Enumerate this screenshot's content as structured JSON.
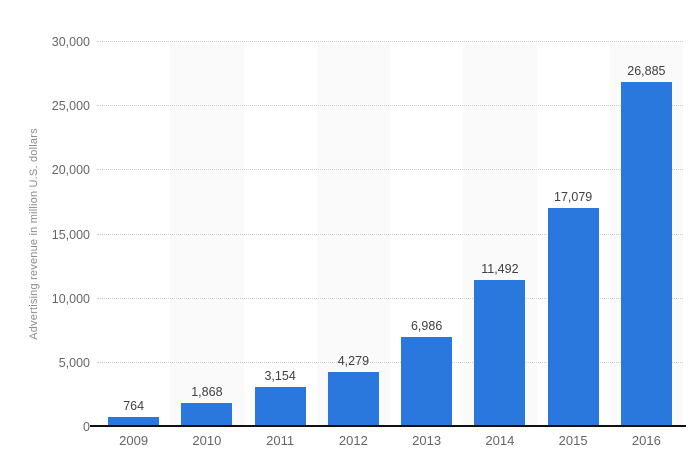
{
  "chart_data": {
    "type": "bar",
    "title": "",
    "categories": [
      "2009",
      "2010",
      "2011",
      "2012",
      "2013",
      "2014",
      "2015",
      "2016"
    ],
    "values": [
      764,
      1868,
      3154,
      4279,
      6986,
      11492,
      17079,
      26885
    ],
    "value_labels": [
      "764",
      "1,868",
      "3,154",
      "4,279",
      "6,986",
      "11,492",
      "17,079",
      "26,885"
    ],
    "xlabel": "",
    "ylabel": "Advertising revenue in million U.S. dollars",
    "ylim": [
      0,
      30000
    ],
    "ytick_interval": 5000,
    "yticks": [
      0,
      5000,
      10000,
      15000,
      20000,
      25000,
      30000
    ],
    "ytick_labels": [
      "0",
      "5,000",
      "10,000",
      "15,000",
      "20,000",
      "25,000",
      "30,000"
    ],
    "grid": "horizontal-dotted",
    "legend": "none",
    "colors": {
      "bar": "#2a77de",
      "column_stripe": "#fafafa",
      "gridline": "#cccccc",
      "axis_line": "#111111",
      "tick_label": "#666666",
      "value_label": "#404040",
      "axis_title": "#8c8c8c",
      "background": "#ffffff"
    }
  }
}
